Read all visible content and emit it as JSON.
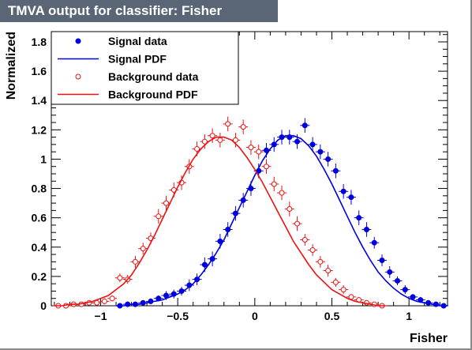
{
  "title": "TMVA output for classifier: Fisher",
  "chart_data": {
    "type": "scatter",
    "xlabel": "Fisher",
    "ylabel": "Normalized",
    "xlim": [
      -1.32,
      1.25
    ],
    "ylim": [
      0,
      1.87
    ],
    "x_ticks": [
      -1,
      -0.5,
      0,
      0.5,
      1
    ],
    "x_tick_labels": [
      "−1",
      "−0.5",
      "0",
      "0.5",
      "1"
    ],
    "y_ticks": [
      0,
      0.2,
      0.4,
      0.6,
      0.8,
      1,
      1.2,
      1.4,
      1.6,
      1.8
    ],
    "y_tick_labels": [
      "0",
      "0.2",
      "0.4",
      "0.6",
      "0.8",
      "1",
      "1.2",
      "1.4",
      "1.6",
      "1.8"
    ],
    "legend_position": "top-left",
    "legend": [
      "Signal data",
      "Signal PDF",
      "Background data",
      "Background PDF"
    ],
    "colors": {
      "signal": "#0000dd",
      "background": "#ee1111",
      "title_bg": "#5a6675"
    },
    "series": [
      {
        "name": "Signal data",
        "kind": "points",
        "x": [
          -0.875,
          -0.825,
          -0.775,
          -0.725,
          -0.675,
          -0.625,
          -0.575,
          -0.525,
          -0.475,
          -0.425,
          -0.375,
          -0.325,
          -0.275,
          -0.225,
          -0.175,
          -0.125,
          -0.075,
          -0.025,
          0.025,
          0.075,
          0.125,
          0.175,
          0.225,
          0.275,
          0.325,
          0.375,
          0.425,
          0.475,
          0.525,
          0.575,
          0.625,
          0.675,
          0.725,
          0.775,
          0.825,
          0.875,
          0.925,
          0.975,
          1.025,
          1.075,
          1.125,
          1.175,
          1.225
        ],
        "y": [
          0.0,
          0.01,
          0.01,
          0.02,
          0.03,
          0.05,
          0.07,
          0.08,
          0.1,
          0.14,
          0.18,
          0.28,
          0.32,
          0.44,
          0.52,
          0.63,
          0.72,
          0.8,
          0.92,
          1.06,
          1.1,
          1.15,
          1.15,
          1.12,
          1.23,
          1.1,
          1.05,
          1.0,
          0.92,
          0.78,
          0.74,
          0.6,
          0.52,
          0.43,
          0.31,
          0.23,
          0.17,
          0.11,
          0.06,
          0.04,
          0.02,
          0.01,
          0.0
        ],
        "err": [
          0.0,
          0.01,
          0.01,
          0.01,
          0.02,
          0.02,
          0.03,
          0.03,
          0.03,
          0.04,
          0.04,
          0.05,
          0.05,
          0.05,
          0.05,
          0.05,
          0.05,
          0.05,
          0.05,
          0.05,
          0.05,
          0.05,
          0.05,
          0.05,
          0.05,
          0.05,
          0.05,
          0.05,
          0.05,
          0.05,
          0.05,
          0.05,
          0.05,
          0.04,
          0.04,
          0.04,
          0.03,
          0.03,
          0.02,
          0.02,
          0.01,
          0.01,
          0.0
        ]
      },
      {
        "name": "Signal PDF",
        "kind": "line",
        "x": [
          -0.9,
          -0.85,
          -0.8,
          -0.75,
          -0.7,
          -0.65,
          -0.6,
          -0.55,
          -0.5,
          -0.45,
          -0.4,
          -0.35,
          -0.3,
          -0.25,
          -0.2,
          -0.15,
          -0.1,
          -0.05,
          0.0,
          0.05,
          0.1,
          0.15,
          0.2,
          0.25,
          0.3,
          0.35,
          0.4,
          0.45,
          0.5,
          0.55,
          0.6,
          0.65,
          0.7,
          0.75,
          0.8,
          0.85,
          0.9,
          0.95,
          1.0,
          1.05,
          1.1,
          1.15,
          1.2,
          1.25
        ],
        "y": [
          0.0,
          0.0,
          0.01,
          0.01,
          0.02,
          0.03,
          0.04,
          0.06,
          0.08,
          0.11,
          0.15,
          0.21,
          0.28,
          0.36,
          0.45,
          0.56,
          0.67,
          0.78,
          0.89,
          0.99,
          1.07,
          1.13,
          1.16,
          1.16,
          1.14,
          1.09,
          1.02,
          0.93,
          0.83,
          0.72,
          0.61,
          0.5,
          0.4,
          0.31,
          0.23,
          0.17,
          0.12,
          0.08,
          0.05,
          0.03,
          0.02,
          0.01,
          0.0,
          0.0
        ]
      },
      {
        "name": "Background data",
        "kind": "points",
        "x": [
          -1.275,
          -1.225,
          -1.175,
          -1.125,
          -1.075,
          -1.025,
          -0.975,
          -0.925,
          -0.875,
          -0.825,
          -0.775,
          -0.725,
          -0.675,
          -0.625,
          -0.575,
          -0.525,
          -0.475,
          -0.425,
          -0.375,
          -0.325,
          -0.275,
          -0.225,
          -0.175,
          -0.125,
          -0.075,
          -0.025,
          0.025,
          0.075,
          0.125,
          0.175,
          0.225,
          0.275,
          0.325,
          0.375,
          0.425,
          0.475,
          0.525,
          0.575,
          0.625,
          0.675,
          0.725,
          0.775,
          0.825
        ],
        "y": [
          0.0,
          0.0,
          0.01,
          0.01,
          0.02,
          0.02,
          0.03,
          0.05,
          0.19,
          0.18,
          0.3,
          0.39,
          0.46,
          0.61,
          0.7,
          0.79,
          0.84,
          0.95,
          1.07,
          1.12,
          1.16,
          1.13,
          1.24,
          1.13,
          1.22,
          1.08,
          1.05,
          0.95,
          0.83,
          0.77,
          0.66,
          0.56,
          0.45,
          0.38,
          0.3,
          0.24,
          0.16,
          0.11,
          0.06,
          0.04,
          0.02,
          0.01,
          0.0
        ],
        "err": [
          0.0,
          0.0,
          0.01,
          0.01,
          0.01,
          0.01,
          0.02,
          0.02,
          0.03,
          0.03,
          0.04,
          0.04,
          0.04,
          0.05,
          0.05,
          0.05,
          0.05,
          0.05,
          0.05,
          0.05,
          0.05,
          0.05,
          0.05,
          0.05,
          0.05,
          0.05,
          0.05,
          0.05,
          0.05,
          0.05,
          0.05,
          0.05,
          0.04,
          0.04,
          0.04,
          0.04,
          0.03,
          0.03,
          0.02,
          0.02,
          0.01,
          0.01,
          0.0
        ]
      },
      {
        "name": "Background PDF",
        "kind": "line",
        "x": [
          -1.3,
          -1.25,
          -1.2,
          -1.15,
          -1.1,
          -1.05,
          -1.0,
          -0.95,
          -0.9,
          -0.85,
          -0.8,
          -0.75,
          -0.7,
          -0.65,
          -0.6,
          -0.55,
          -0.5,
          -0.45,
          -0.4,
          -0.35,
          -0.3,
          -0.25,
          -0.2,
          -0.15,
          -0.1,
          -0.05,
          0.0,
          0.05,
          0.1,
          0.15,
          0.2,
          0.25,
          0.3,
          0.35,
          0.4,
          0.45,
          0.5,
          0.55,
          0.6,
          0.65,
          0.7,
          0.75,
          0.8,
          0.85
        ],
        "y": [
          0.0,
          0.0,
          0.01,
          0.01,
          0.02,
          0.03,
          0.05,
          0.07,
          0.11,
          0.15,
          0.21,
          0.29,
          0.38,
          0.48,
          0.59,
          0.7,
          0.81,
          0.91,
          1.0,
          1.07,
          1.12,
          1.15,
          1.15,
          1.13,
          1.08,
          1.01,
          0.93,
          0.84,
          0.74,
          0.64,
          0.54,
          0.44,
          0.36,
          0.28,
          0.21,
          0.16,
          0.11,
          0.08,
          0.05,
          0.03,
          0.02,
          0.01,
          0.0,
          0.0
        ]
      }
    ]
  }
}
